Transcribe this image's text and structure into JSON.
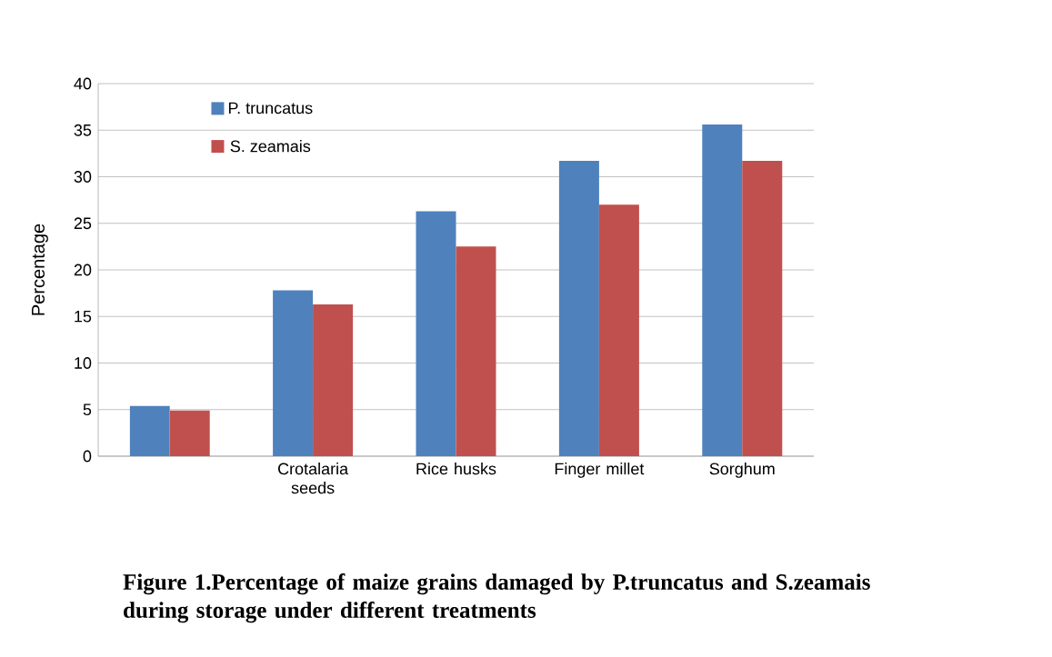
{
  "chart_data": {
    "type": "bar",
    "title": "Figure 1.Percentage of maize  grains damaged by P.truncatus and S.zeamais  during storage under different treatments",
    "ylabel": "Percentage",
    "categories": [
      null,
      "Crotalaria seeds",
      "Rice husks",
      "Finger millet",
      "Sorghum"
    ],
    "series": [
      {
        "name": "P. truncatus",
        "color": "#4f81bd",
        "values": [
          5.4,
          17.8,
          26.3,
          31.7,
          35.6
        ]
      },
      {
        "name": "S. zeamais",
        "color": "#c0504d",
        "values": [
          4.9,
          16.3,
          22.5,
          27.0,
          31.7
        ]
      }
    ],
    "ylim": [
      0,
      40
    ],
    "yticks": [
      0,
      5,
      10,
      15,
      20,
      25,
      30,
      35,
      40
    ],
    "grid": "y",
    "legend": "top left"
  }
}
